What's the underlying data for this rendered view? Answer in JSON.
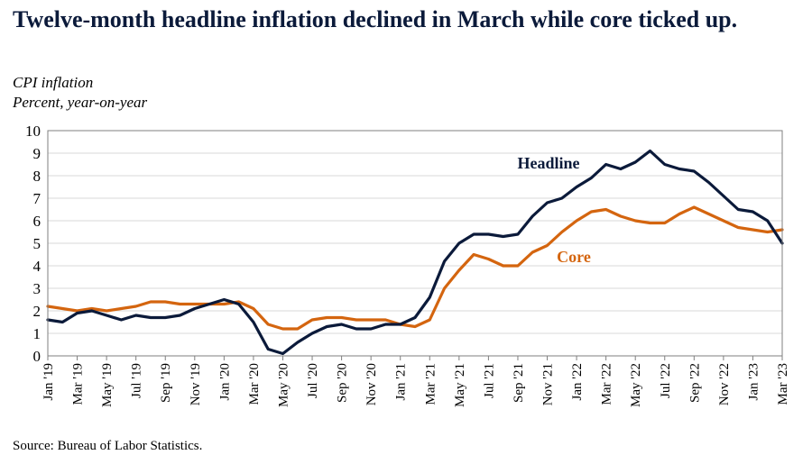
{
  "title": "Twelve-month  headline inflation declined in March while core ticked up.",
  "subtitle1": "CPI inflation",
  "subtitle2": "Percent, year-on-year",
  "source": "Source: Bureau of Labor Statistics.",
  "colors": {
    "headline": "#0b1a3a",
    "core": "#d4650f",
    "grid": "#d9d9d9"
  },
  "chart_data": {
    "type": "line",
    "ylim": [
      0,
      10
    ],
    "yticks": [
      "0",
      "1",
      "2",
      "3",
      "4",
      "5",
      "6",
      "7",
      "8",
      "9",
      "10"
    ],
    "grid": true,
    "x": [
      "Jan '19",
      "Feb '19",
      "Mar '19",
      "Apr '19",
      "May '19",
      "Jun '19",
      "Jul '19",
      "Aug '19",
      "Sep '19",
      "Oct '19",
      "Nov '19",
      "Dec '19",
      "Jan '20",
      "Feb '20",
      "Mar '20",
      "Apr '20",
      "May '20",
      "Jun '20",
      "Jul '20",
      "Aug '20",
      "Sep '20",
      "Oct '20",
      "Nov '20",
      "Dec '20",
      "Jan '21",
      "Feb '21",
      "Mar '21",
      "Apr '21",
      "May '21",
      "Jun '21",
      "Jul '21",
      "Aug '21",
      "Sep '21",
      "Oct '21",
      "Nov '21",
      "Dec '21",
      "Jan '22",
      "Feb '22",
      "Mar '22",
      "Apr '22",
      "May '22",
      "Jun '22",
      "Jul '22",
      "Aug '22",
      "Sep '22",
      "Oct '22",
      "Nov '22",
      "Dec '22",
      "Jan '23",
      "Feb '23",
      "Mar '23"
    ],
    "xticks": [
      "Jan '19",
      "Mar '19",
      "May '19",
      "Jul '19",
      "Sep '19",
      "Nov '19",
      "Jan '20",
      "Mar '20",
      "May '20",
      "Jul '20",
      "Sep '20",
      "Nov '20",
      "Jan '21",
      "Mar '21",
      "May '21",
      "Jul '21",
      "Sep '21",
      "Nov '21",
      "Jan '22",
      "Mar '22",
      "May '22",
      "Jul '22",
      "Sep '22",
      "Nov '22",
      "Jan '23",
      "Mar '23"
    ],
    "series": [
      {
        "name": "Headline",
        "values": [
          1.6,
          1.5,
          1.9,
          2.0,
          1.8,
          1.6,
          1.8,
          1.7,
          1.7,
          1.8,
          2.1,
          2.3,
          2.5,
          2.3,
          1.5,
          0.3,
          0.1,
          0.6,
          1.0,
          1.3,
          1.4,
          1.2,
          1.2,
          1.4,
          1.4,
          1.7,
          2.6,
          4.2,
          5.0,
          5.4,
          5.4,
          5.3,
          5.4,
          6.2,
          6.8,
          7.0,
          7.5,
          7.9,
          8.5,
          8.3,
          8.6,
          9.1,
          8.5,
          8.3,
          8.2,
          7.7,
          7.1,
          6.5,
          6.4,
          6.0,
          5.0
        ]
      },
      {
        "name": "Core",
        "values": [
          2.2,
          2.1,
          2.0,
          2.1,
          2.0,
          2.1,
          2.2,
          2.4,
          2.4,
          2.3,
          2.3,
          2.3,
          2.3,
          2.4,
          2.1,
          1.4,
          1.2,
          1.2,
          1.6,
          1.7,
          1.7,
          1.6,
          1.6,
          1.6,
          1.4,
          1.3,
          1.6,
          3.0,
          3.8,
          4.5,
          4.3,
          4.0,
          4.0,
          4.6,
          4.9,
          5.5,
          6.0,
          6.4,
          6.5,
          6.2,
          6.0,
          5.9,
          5.9,
          6.3,
          6.6,
          6.3,
          6.0,
          5.7,
          5.6,
          5.5,
          5.6
        ]
      }
    ],
    "labels": {
      "headline": "Headline",
      "core": "Core"
    }
  }
}
